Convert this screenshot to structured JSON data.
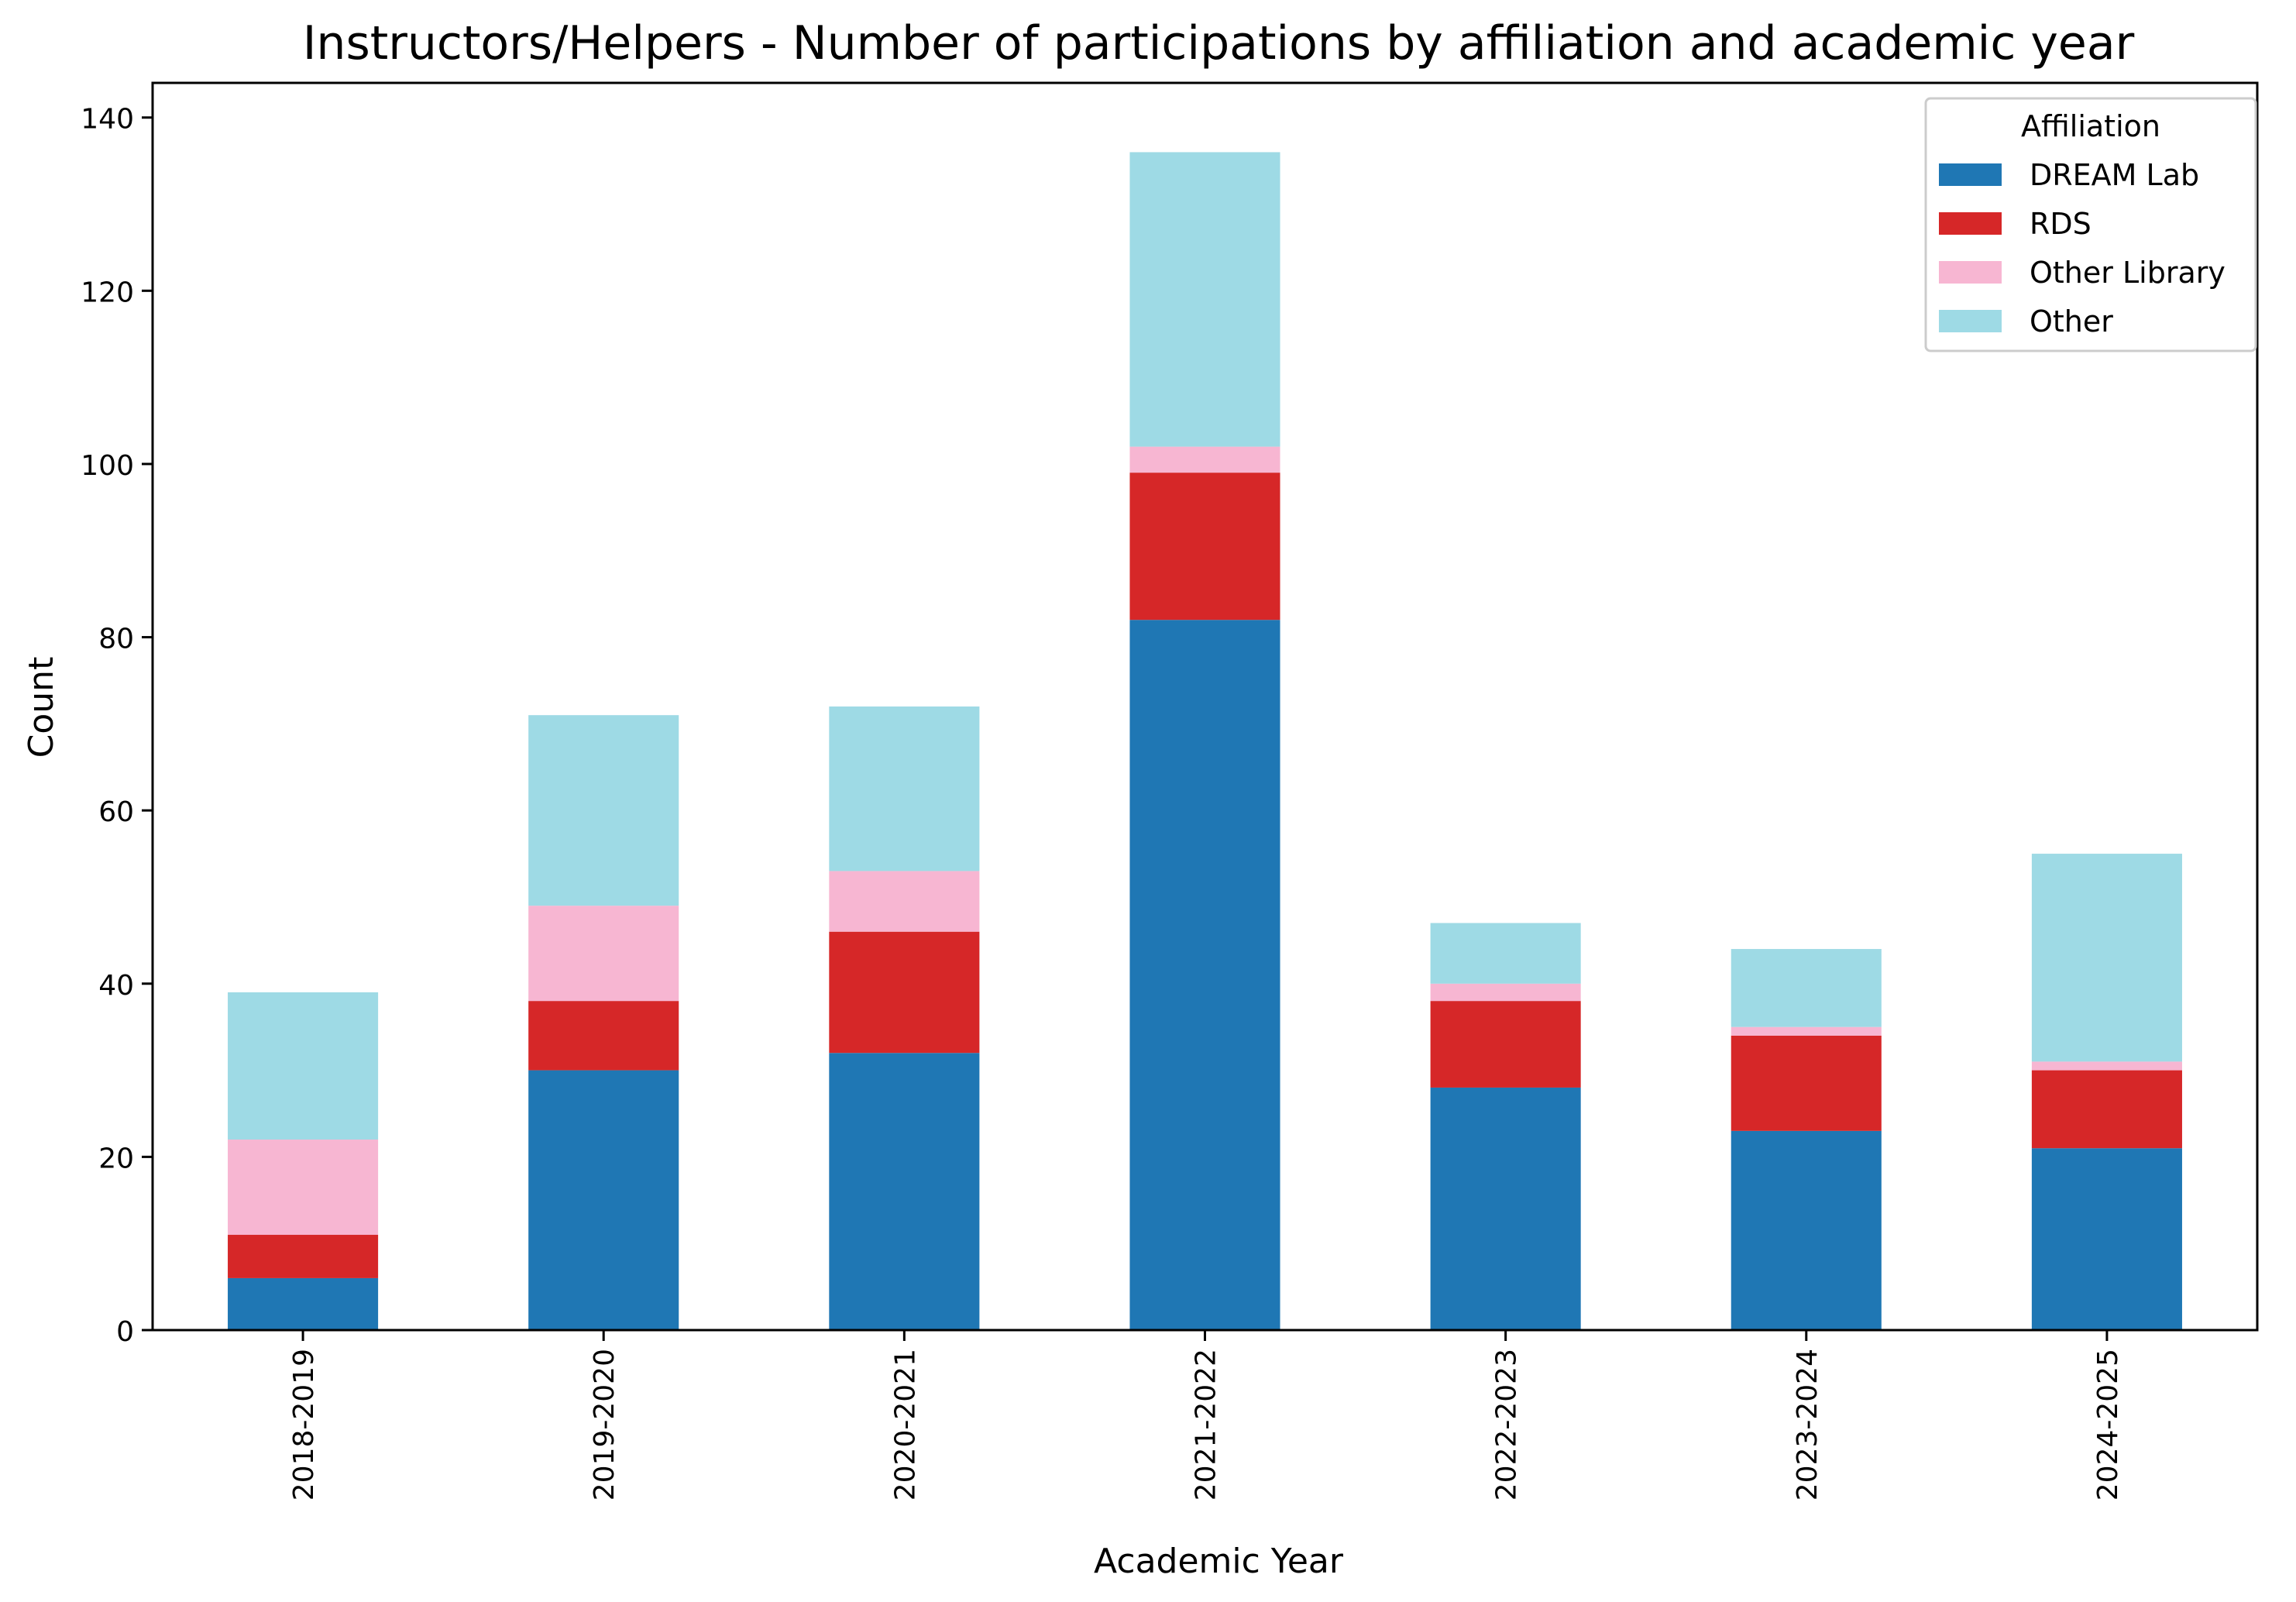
{
  "chart_data": {
    "type": "bar",
    "stacked": true,
    "title": "Instructors/Helpers - Number of participations by affiliation and academic year",
    "xlabel": "Academic Year",
    "ylabel": "Count",
    "ylim": [
      0,
      144
    ],
    "yticks": [
      0,
      20,
      40,
      60,
      80,
      100,
      120,
      140
    ],
    "grid": false,
    "legend": {
      "title": "Affiliation",
      "placement": "top-right"
    },
    "categories": [
      "2018-2019",
      "2019-2020",
      "2020-2021",
      "2021-2022",
      "2022-2023",
      "2023-2024",
      "2024-2025"
    ],
    "series": [
      {
        "name": "DREAM Lab",
        "color": "#1f77b4",
        "values": [
          6,
          30,
          32,
          82,
          28,
          23,
          21
        ]
      },
      {
        "name": "RDS",
        "color": "#d62728",
        "values": [
          5,
          8,
          14,
          17,
          10,
          11,
          9
        ]
      },
      {
        "name": "Other Library",
        "color": "#f7b6d2",
        "values": [
          11,
          11,
          7,
          3,
          2,
          1,
          1
        ]
      },
      {
        "name": "Other",
        "color": "#9edae5",
        "values": [
          17,
          22,
          19,
          34,
          7,
          9,
          24
        ]
      }
    ]
  }
}
